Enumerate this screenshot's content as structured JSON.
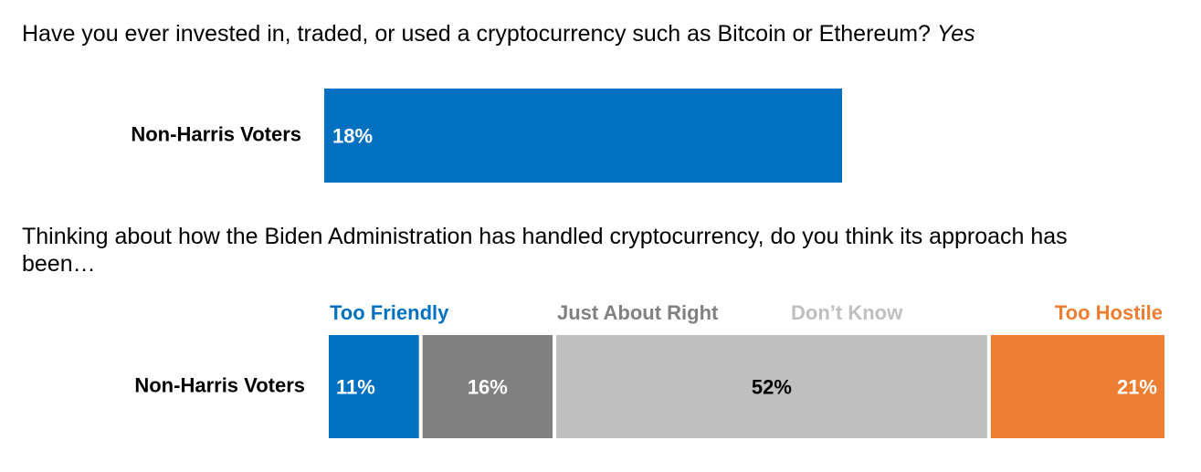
{
  "chart_data": [
    {
      "type": "hbar",
      "title": "Have you ever invested in, traded, or used a cryptocurrency such as Bitcoin or Ethereum?",
      "categories": [
        "Non-Harris Voters"
      ],
      "series": [
        {
          "name": "Yes",
          "color": "#0070c0",
          "values": [
            18
          ],
          "value_labels": [
            "18%"
          ]
        }
      ],
      "xlim": [
        0,
        32
      ]
    },
    {
      "type": "stacked-hbar",
      "title": "Thinking about how the Biden Administration has handled cryptocurrency, do you think its approach has been…",
      "categories": [
        "Non-Harris Voters"
      ],
      "series": [
        {
          "name": "Too Friendly",
          "color": "#0070c0",
          "values": [
            11
          ],
          "value_labels": [
            "11%"
          ]
        },
        {
          "name": "Just About Right",
          "color": "#808080",
          "values": [
            16
          ],
          "value_labels": [
            "16%"
          ]
        },
        {
          "name": "Don’t Know",
          "color": "#bfbfbf",
          "values": [
            52
          ],
          "value_labels": [
            "52%"
          ]
        },
        {
          "name": "Too Hostile",
          "color": "#ed7d31",
          "values": [
            21
          ],
          "value_labels": [
            "21%"
          ]
        }
      ],
      "xlim": [
        0,
        100
      ]
    }
  ]
}
